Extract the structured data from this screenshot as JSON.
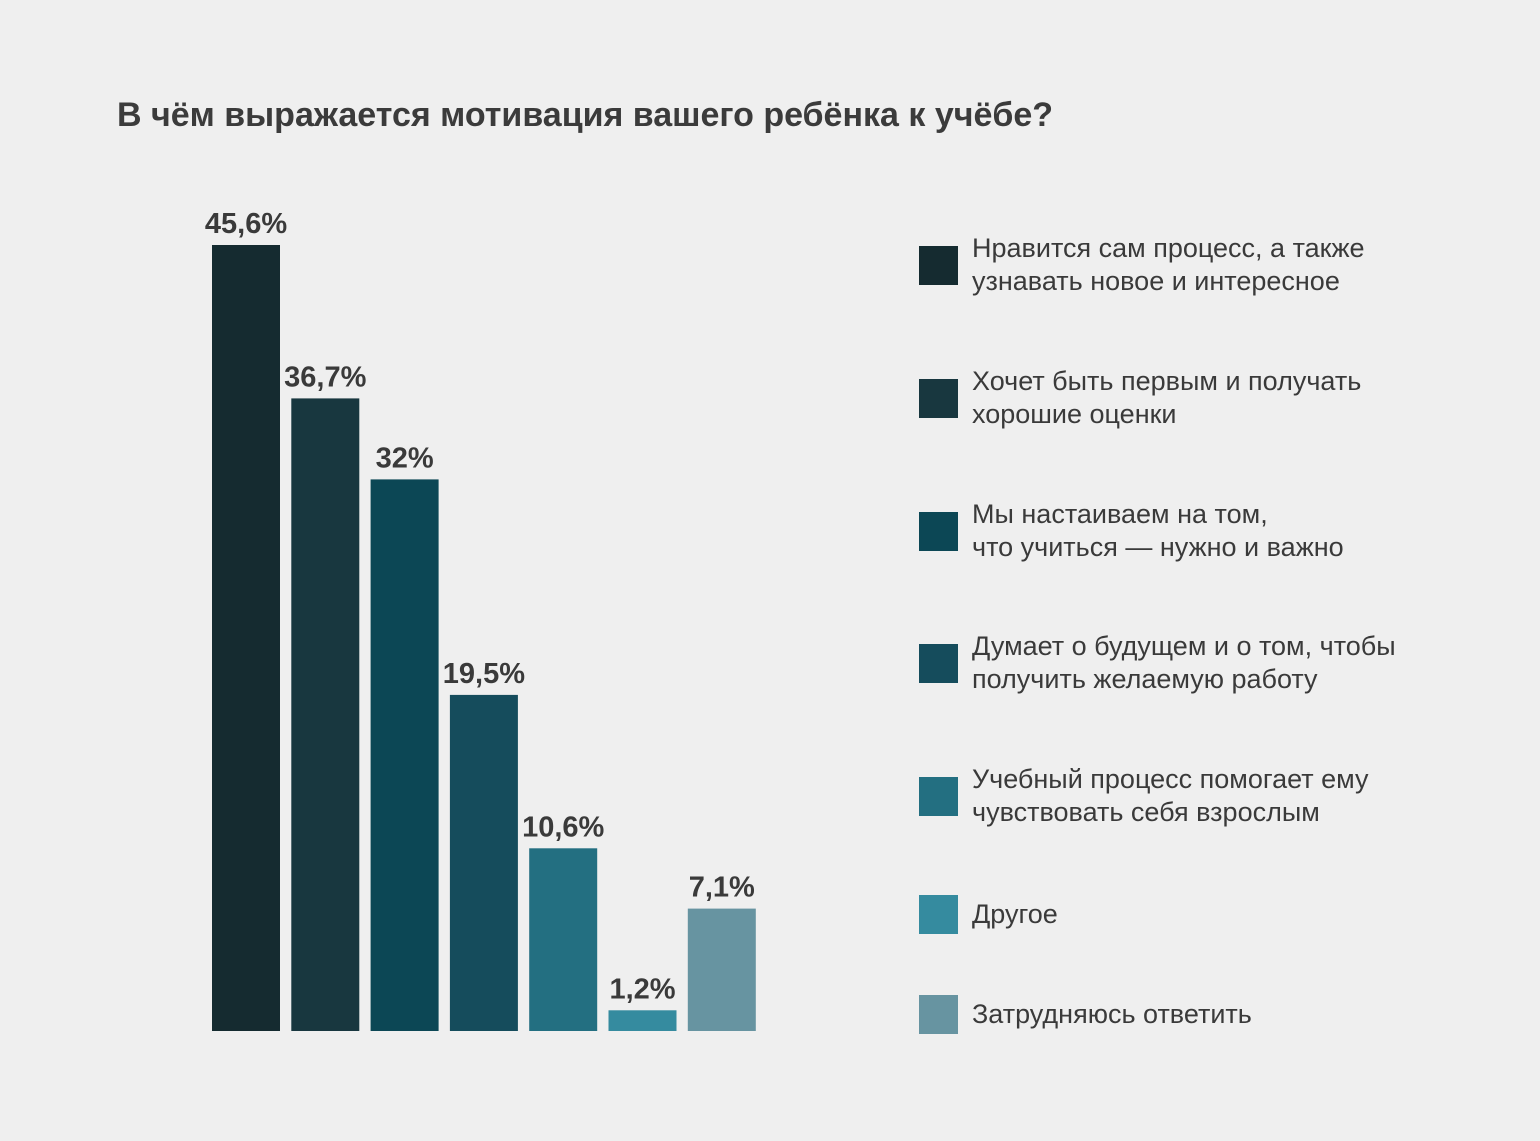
{
  "chart_data": {
    "type": "bar",
    "title": "В чём выражается мотивация вашего ребёнка к учёбе?",
    "xlabel": "",
    "ylabel": "",
    "ylim": [
      0,
      45.6
    ],
    "grid": false,
    "legend_position": "right",
    "series": [
      {
        "name": "Нравится сам процесс, а также\nузнавать новое и интересное",
        "value": 45.6,
        "label": "45,6%",
        "color": "#152b30"
      },
      {
        "name": "Хочет быть первым и получать\nхорошие оценки",
        "value": 36.7,
        "label": "36,7%",
        "color": "#18373f"
      },
      {
        "name": "Мы настаиваем на том,\nчто учиться — нужно и важно",
        "value": 32,
        "label": "32%",
        "color": "#0c4755"
      },
      {
        "name": "Думает о будущем и о том, чтобы\nполучить желаемую работу",
        "value": 19.5,
        "label": "19,5%",
        "color": "#154c5c"
      },
      {
        "name": "Учебный процесс помогает ему\nчувствовать себя взрослым",
        "value": 10.6,
        "label": "10,6%",
        "color": "#236f81"
      },
      {
        "name": "Другое",
        "value": 1.2,
        "label": "1,2%",
        "color": "#358b9f"
      },
      {
        "name": "Затрудняюсь ответить",
        "value": 7.1,
        "label": "7,1%",
        "color": "#6794a1"
      }
    ]
  }
}
